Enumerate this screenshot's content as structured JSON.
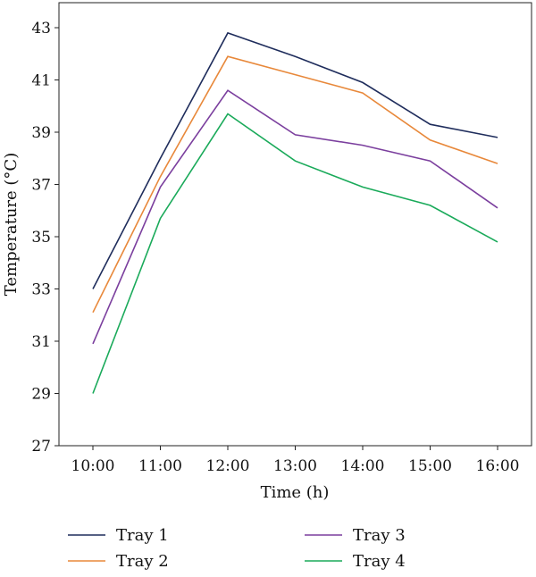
{
  "chart_data": {
    "type": "line",
    "title": "",
    "xlabel": "Time (h)",
    "ylabel": "Temperature (°C)",
    "categories": [
      "10:00",
      "11:00",
      "12:00",
      "13:00",
      "14:00",
      "15:00",
      "16:00"
    ],
    "ylim": [
      27,
      43
    ],
    "yticks": [
      27,
      29,
      31,
      33,
      35,
      37,
      39,
      41,
      43
    ],
    "grid": false,
    "legend_position": "bottom",
    "series": [
      {
        "name": "Tray 1",
        "color": "#1f2d5c",
        "values": [
          33.0,
          38.0,
          42.8,
          41.9,
          40.9,
          39.3,
          38.8
        ]
      },
      {
        "name": "Tray 2",
        "color": "#e8883a",
        "values": [
          32.1,
          37.3,
          41.9,
          41.2,
          40.5,
          38.7,
          37.8
        ]
      },
      {
        "name": "Tray 3",
        "color": "#7b3f9e",
        "values": [
          30.9,
          36.9,
          40.6,
          38.9,
          38.5,
          37.9,
          36.1
        ]
      },
      {
        "name": "Tray 4",
        "color": "#1aaa5a",
        "values": [
          29.0,
          35.7,
          39.7,
          37.9,
          36.9,
          36.2,
          34.8
        ]
      }
    ]
  }
}
